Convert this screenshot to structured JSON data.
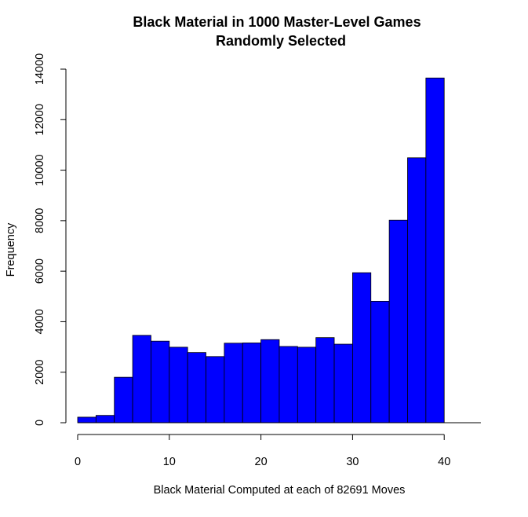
{
  "chart_data": {
    "type": "bar",
    "title_lines": [
      "Black Material in 1000 Master-Level Games",
      "Randomly Selected"
    ],
    "xlabel": "Black Material Computed at each of 82691 Moves",
    "ylabel": "Frequency",
    "bin_width": 2,
    "bin_starts": [
      0,
      2,
      4,
      6,
      8,
      10,
      12,
      14,
      16,
      18,
      20,
      22,
      24,
      26,
      28,
      30,
      32,
      34,
      36,
      38
    ],
    "values": [
      220,
      290,
      1800,
      3460,
      3230,
      2990,
      2780,
      2620,
      3150,
      3160,
      3290,
      3020,
      2990,
      3370,
      3110,
      5940,
      4810,
      8020,
      10490,
      13650
    ],
    "xlim": [
      0,
      44
    ],
    "ylim": [
      0,
      14000
    ],
    "x_ticks": [
      "0",
      "10",
      "20",
      "30",
      "40"
    ],
    "y_ticks": [
      "0",
      "2000",
      "4000",
      "6000",
      "8000",
      "10000",
      "12000",
      "14000"
    ],
    "bar_color": "#0000ff",
    "bar_border": "#000000",
    "grid": false
  }
}
